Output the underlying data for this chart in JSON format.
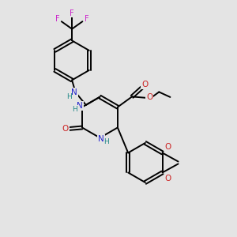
{
  "bg_color": "#e4e4e4",
  "bond_color": "#000000",
  "N_color": "#2222cc",
  "O_color": "#cc2222",
  "F_color": "#cc22cc",
  "H_color": "#228888",
  "bond_width": 1.4,
  "figsize": [
    3.0,
    3.0
  ],
  "dpi": 100,
  "xlim": [
    0,
    10
  ],
  "ylim": [
    0,
    10
  ]
}
